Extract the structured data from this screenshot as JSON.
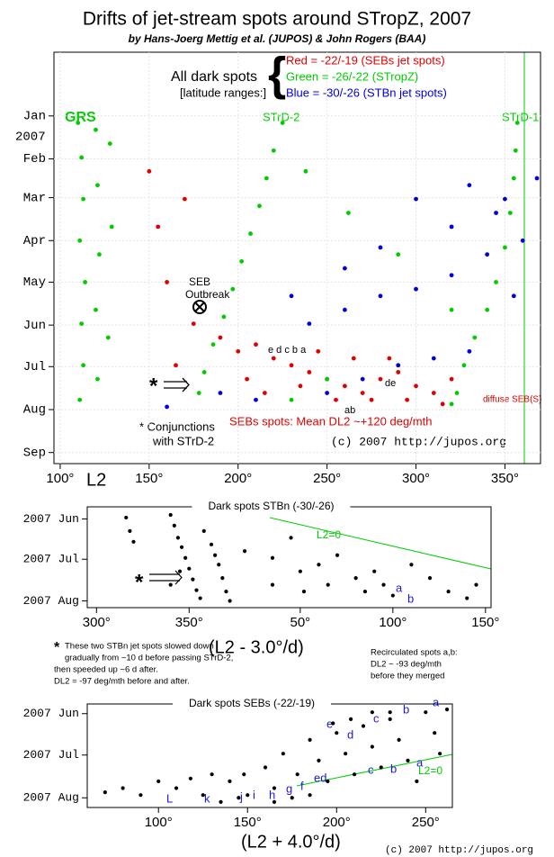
{
  "chart_data": [
    {
      "type": "scatter",
      "title": "Drifts of jet-stream spots around STropZ, 2007",
      "subtitle": "by Hans-Joerg Mettig et al. (JUPOS) & John Rogers (BAA)",
      "x_label": "L2",
      "y_inverted": true,
      "grid": true,
      "legend": "top",
      "legend_heading": [
        "All dark spots",
        "[latitude ranges:]"
      ],
      "xlim": [
        96.5,
        370
      ],
      "ylim": [
        -46,
        251
      ],
      "xticks": [
        {
          "value": 100,
          "label": "100°"
        },
        {
          "value": 150,
          "label": "150°"
        },
        {
          "value": 200,
          "label": "200°"
        },
        {
          "value": 250,
          "label": "250°"
        },
        {
          "value": 300,
          "label": "300°"
        },
        {
          "value": 350,
          "label": "350°"
        }
      ],
      "yticks": [
        {
          "value": 0,
          "label": "Jan"
        },
        {
          "value": 31,
          "label": "Feb"
        },
        {
          "value": 59,
          "label": "Mar"
        },
        {
          "value": 90,
          "label": "Apr"
        },
        {
          "value": 120,
          "label": "May"
        },
        {
          "value": 151,
          "label": "Jun"
        },
        {
          "value": 181,
          "label": "Jul"
        },
        {
          "value": 212,
          "label": "Aug"
        },
        {
          "value": 243,
          "label": "Sep"
        }
      ],
      "year_label": "2007",
      "annotations": {
        "grs": "GRS",
        "strd2": "STrD-2",
        "strd1": "STrD-1",
        "seb": "SEB",
        "outbreak": "Outbreak",
        "edcba": "e d c b a",
        "ab": "ab",
        "de": "de",
        "diffuse": "diffuse SEB(S)",
        "star": "*",
        "conj1": "* Conjunctions",
        "conj2": "with STrD-2",
        "mean": "SEBs spots: Mean DL2 ~+120 deg/mth",
        "copyright": "(c) 2007 http://jupos.org"
      },
      "series": [
        {
          "name": "Red = -22/-19 (SEBs jet spots)",
          "color": "#e00000",
          "x": [
            150,
            155,
            160,
            170,
            175,
            165,
            190,
            200,
            210,
            220,
            230,
            240,
            250,
            260,
            270,
            280,
            290,
            300,
            310,
            320,
            205,
            215,
            235,
            255,
            275,
            295,
            315,
            245,
            265,
            285
          ],
          "values": [
            40,
            80,
            120,
            60,
            150,
            180,
            160,
            170,
            165,
            175,
            180,
            185,
            190,
            195,
            200,
            190,
            185,
            195,
            200,
            190,
            190,
            200,
            195,
            205,
            205,
            205,
            208,
            170,
            175,
            175
          ]
        },
        {
          "name": "Green = -26/-22 (STropZ)",
          "color": "#00cc00",
          "x": [
            110,
            112,
            113,
            111,
            114,
            112,
            113,
            111,
            120,
            121,
            122,
            120,
            121,
            128,
            129,
            127,
            225,
            220,
            216,
            212,
            207,
            202,
            197,
            192,
            186,
            181,
            178,
            357,
            356,
            355,
            353,
            350,
            345,
            340,
            333,
            327,
            323,
            320,
            238,
            262,
            290,
            320,
            250,
            230
          ],
          "values": [
            5,
            30,
            60,
            90,
            120,
            150,
            180,
            205,
            10,
            50,
            100,
            140,
            190,
            20,
            80,
            160,
            5,
            25,
            45,
            65,
            85,
            105,
            125,
            145,
            165,
            185,
            200,
            5,
            25,
            45,
            70,
            95,
            120,
            140,
            160,
            180,
            200,
            208,
            40,
            70,
            100,
            140,
            190,
            205
          ]
        },
        {
          "name": "Blue = -30/-26 (STBn jet spots)",
          "color": "#0000dd",
          "x": [
            240,
            260,
            280,
            300,
            320,
            340,
            360,
            250,
            270,
            290,
            310,
            330,
            210,
            190,
            160,
            300,
            330,
            350,
            368,
            260,
            280,
            320,
            345,
            230,
            355
          ],
          "values": [
            150,
            140,
            130,
            125,
            115,
            100,
            90,
            200,
            190,
            180,
            175,
            170,
            205,
            200,
            210,
            60,
            50,
            60,
            45,
            110,
            95,
            80,
            70,
            130,
            130
          ]
        }
      ]
    },
    {
      "type": "scatter",
      "title": "Dark spots STBn (-30/-26)",
      "x_label": "(L2 - 3.0°/d)",
      "y_inverted": true,
      "grid": false,
      "xlim": [
        295,
        513
      ],
      "ylim": [
        142,
        217
      ],
      "xticks": [
        {
          "value": 300,
          "label": "300°"
        },
        {
          "value": 350,
          "label": "350°"
        },
        {
          "value": 410,
          "label": "50°"
        },
        {
          "value": 460,
          "label": "100°"
        },
        {
          "value": 510,
          "label": "150°"
        }
      ],
      "yticks": [
        {
          "value": 151,
          "label": "2007 Jun"
        },
        {
          "value": 181,
          "label": "2007 Jul"
        },
        {
          "value": 212,
          "label": "2007 Aug"
        }
      ],
      "annotations": {
        "l2zero": "L2=0",
        "a": "a",
        "b": "b",
        "star": "*"
      },
      "note_left": [
        "*",
        "These two STBn jet spots slowed down",
        "gradually from ~10 d before passing STrD-2,",
        "then speeded up ~6 d after.",
        "DL2 = -97 deg/mth before and after."
      ],
      "note_right": [
        "Recirculated spots a,b:",
        "DL2 ~ -93 deg/mth",
        "before they merged"
      ],
      "series": [
        {
          "color": "#000000",
          "x": [
            316,
            318,
            320,
            340,
            342,
            344,
            346,
            348,
            350,
            352,
            354,
            356,
            345,
            340,
            358,
            362,
            364,
            366,
            368,
            370,
            372,
            380,
            395,
            405,
            410,
            420,
            425,
            430,
            440,
            445,
            450,
            455,
            460,
            470,
            480,
            490,
            500,
            505,
            395,
            412
          ],
          "values": [
            150,
            160,
            168,
            148,
            156,
            165,
            172,
            180,
            188,
            196,
            204,
            210,
            190,
            200,
            160,
            170,
            178,
            185,
            195,
            205,
            212,
            175,
            180,
            165,
            190,
            185,
            200,
            178,
            195,
            205,
            190,
            200,
            208,
            185,
            195,
            205,
            210,
            200,
            200,
            205
          ]
        }
      ]
    },
    {
      "type": "scatter",
      "title": "Dark spots SEBs (-22/-19)",
      "x_label": "(L2 + 4.0°/d)",
      "y_inverted": true,
      "grid": false,
      "xlim": [
        60,
        265
      ],
      "ylim": [
        144,
        219
      ],
      "xticks": [
        {
          "value": 100,
          "label": "100°"
        },
        {
          "value": 150,
          "label": "150°"
        },
        {
          "value": 200,
          "label": "200°"
        },
        {
          "value": 250,
          "label": "250°"
        }
      ],
      "yticks": [
        {
          "value": 151,
          "label": "2007 Jun"
        },
        {
          "value": 181,
          "label": "2007 Jul"
        },
        {
          "value": 212,
          "label": "2007 Aug"
        }
      ],
      "annotations": {
        "l2zero": "L2=0",
        "copyright": "(c) 2007 http://jupos.org"
      },
      "letters": [
        "a",
        "b",
        "a",
        "b",
        "c",
        "c",
        "d",
        "e",
        "ed",
        "L",
        "k",
        "j",
        "i",
        "h",
        "g",
        "f"
      ],
      "series": [
        {
          "color": "#000000",
          "x": [
            70,
            80,
            90,
            100,
            110,
            118,
            125,
            130,
            140,
            148,
            150,
            160,
            165,
            170,
            178,
            185,
            190,
            195,
            200,
            205,
            210,
            215,
            220,
            225,
            230,
            235,
            240,
            245,
            250,
            255,
            258,
            262,
            175,
            185,
            165,
            145,
            135,
            198,
            208,
            220,
            230
          ],
          "values": [
            208,
            205,
            210,
            200,
            205,
            198,
            210,
            195,
            200,
            195,
            210,
            190,
            205,
            180,
            195,
            170,
            185,
            200,
            165,
            180,
            195,
            160,
            175,
            190,
            155,
            170,
            185,
            200,
            150,
            165,
            180,
            148,
            212,
            210,
            215,
            212,
            215,
            158,
            155,
            150,
            150
          ]
        }
      ]
    }
  ]
}
